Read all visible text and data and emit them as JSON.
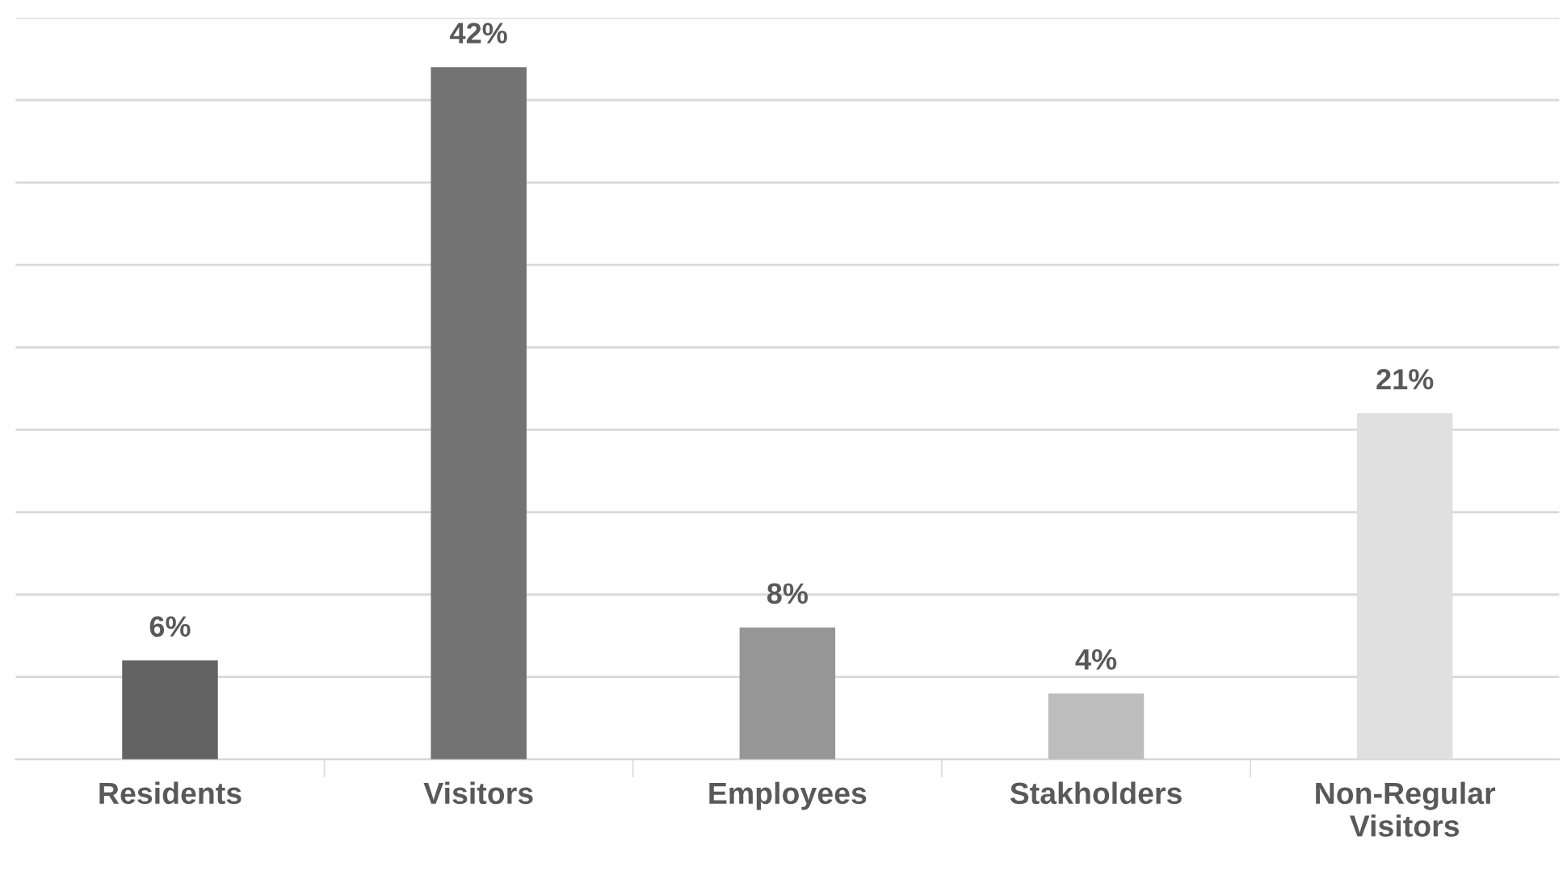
{
  "chart_data": {
    "type": "bar",
    "categories": [
      "Residents",
      "Visitors",
      "Employees",
      "Stakholders",
      "Non-Regular\nVisitors"
    ],
    "values": [
      6,
      42,
      8,
      4,
      21
    ],
    "colors": [
      "#636363",
      "#737373",
      "#969696",
      "#bdbdbd",
      "#e0e0e0"
    ],
    "value_labels": [
      "6%",
      "42%",
      "8%",
      "4%",
      "21%"
    ],
    "ylim": [
      0,
      45
    ],
    "yticks": [
      {
        "value": 0,
        "label": null
      },
      {
        "value": 5,
        "label": null
      },
      {
        "value": 10,
        "label": null
      },
      {
        "value": 15,
        "label": null
      },
      {
        "value": 20,
        "label": null
      },
      {
        "value": 25,
        "label": null
      },
      {
        "value": 30,
        "label": null
      },
      {
        "value": 35,
        "label": null
      },
      {
        "value": 40,
        "label": null
      },
      {
        "value": 45,
        "label": null
      }
    ],
    "grid": "y",
    "tick_labels": "x"
  }
}
